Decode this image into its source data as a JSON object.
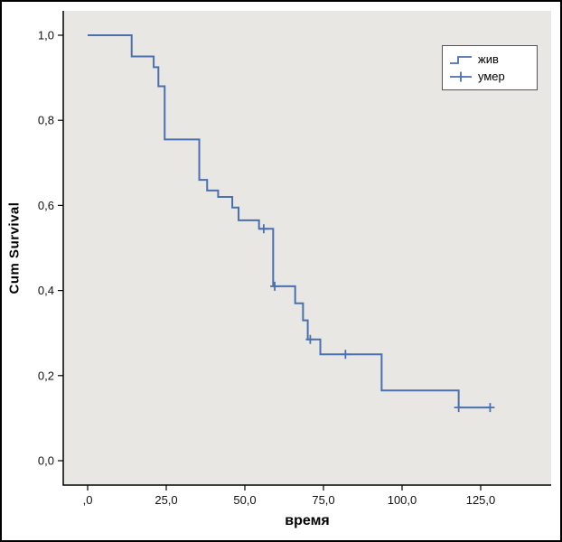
{
  "chart_data": {
    "type": "line",
    "subtype": "kaplan-meier-step-function",
    "title": "",
    "xlabel": "время",
    "ylabel": "Cum Survival",
    "xlim": [
      -8,
      148
    ],
    "ylim": [
      -0.06,
      1.06
    ],
    "grid": false,
    "plot_bg_color": "#e8e7e4",
    "axis_color": "#000000",
    "x_ticks": {
      "values": [
        0,
        25,
        50,
        75,
        100,
        125
      ],
      "labels": [
        ",0",
        "25,0",
        "50,0",
        "75,0",
        "100,0",
        "125,0"
      ]
    },
    "y_ticks": {
      "values": [
        0,
        0.2,
        0.4,
        0.6,
        0.8,
        1.0
      ],
      "labels": [
        "0,0",
        "0,2",
        "0,4",
        "0,6",
        "0,8",
        "1,0"
      ]
    },
    "legend": {
      "position": "top-right",
      "entries": [
        {
          "label": "жив",
          "symbol": "step-line"
        },
        {
          "label": "умер",
          "symbol": "plus-censor-line"
        }
      ]
    },
    "series": [
      {
        "name": "survival-curve",
        "color": "#4a70ae",
        "line_width": 2,
        "step_points": [
          [
            0,
            1.0
          ],
          [
            14,
            0.95
          ],
          [
            21,
            0.925
          ],
          [
            22.5,
            0.88
          ],
          [
            24.5,
            0.755
          ],
          [
            35.5,
            0.66
          ],
          [
            38,
            0.635
          ],
          [
            41.5,
            0.62
          ],
          [
            46,
            0.595
          ],
          [
            48,
            0.565
          ],
          [
            54.5,
            0.545
          ],
          [
            59,
            0.41
          ],
          [
            66,
            0.37
          ],
          [
            68.5,
            0.33
          ],
          [
            70,
            0.285
          ],
          [
            74,
            0.25
          ],
          [
            93.5,
            0.165
          ],
          [
            118,
            0.125
          ]
        ],
        "end_time": 128,
        "censor_marks": [
          [
            56,
            0.545
          ],
          [
            59.5,
            0.41
          ],
          [
            70.8,
            0.285
          ],
          [
            82,
            0.25
          ],
          [
            118,
            0.125
          ],
          [
            128,
            0.125
          ]
        ]
      }
    ]
  }
}
